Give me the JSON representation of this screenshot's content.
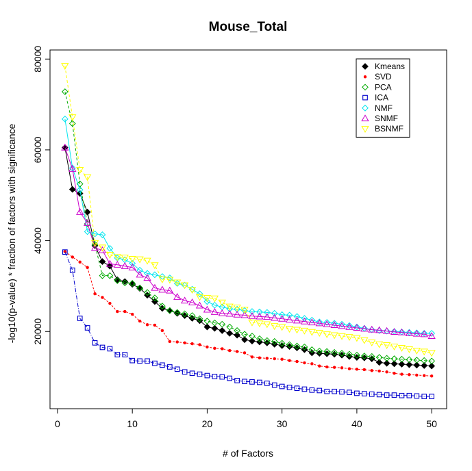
{
  "chart_data": {
    "type": "line",
    "title": "Mouse_Total",
    "xlabel": "# of Factors",
    "ylabel": "-log10(p-value) * fraction of factors with significance",
    "xlim": [
      -1,
      52
    ],
    "ylim": [
      3000,
      82000
    ],
    "x_ticks": [
      0,
      10,
      20,
      30,
      40,
      50
    ],
    "y_ticks": [
      20000,
      40000,
      60000,
      80000
    ],
    "legend_position": "top-right",
    "grid": false,
    "x": [
      1,
      2,
      3,
      4,
      5,
      6,
      7,
      8,
      9,
      10,
      11,
      12,
      13,
      14,
      15,
      16,
      17,
      18,
      19,
      20,
      21,
      22,
      23,
      24,
      25,
      26,
      27,
      28,
      29,
      30,
      31,
      32,
      33,
      34,
      35,
      36,
      37,
      38,
      39,
      40,
      41,
      42,
      43,
      44,
      45,
      46,
      47,
      48,
      49,
      50
    ],
    "series": [
      {
        "name": "Kmeans",
        "color": "#000000",
        "marker": "filled-diamond",
        "dash": "",
        "values": [
          60500,
          51300,
          50400,
          46300,
          38900,
          35400,
          34400,
          31400,
          31000,
          30400,
          29500,
          28000,
          26600,
          25100,
          24600,
          24000,
          23500,
          22900,
          22400,
          21000,
          20700,
          20200,
          19600,
          19200,
          18200,
          17900,
          17700,
          17500,
          17200,
          16900,
          16700,
          16400,
          16000,
          15300,
          15200,
          15100,
          15000,
          14800,
          14500,
          14300,
          14200,
          14000,
          13200,
          13000,
          12900,
          12800,
          12700,
          12600,
          12500,
          12400
        ]
      },
      {
        "name": "SVD",
        "color": "#ff0000",
        "marker": "filled-dot",
        "dash": "3,2",
        "values": [
          37600,
          36400,
          35300,
          34100,
          28300,
          27500,
          26200,
          24400,
          24400,
          23800,
          22300,
          21500,
          21400,
          20200,
          17800,
          17700,
          17500,
          17300,
          17100,
          16600,
          16300,
          16200,
          15800,
          15600,
          15300,
          14400,
          14200,
          14100,
          14000,
          13900,
          13600,
          13400,
          13100,
          12900,
          12400,
          12200,
          12100,
          12000,
          11800,
          11700,
          11600,
          11400,
          11300,
          11100,
          10800,
          10600,
          10500,
          10400,
          10300,
          10200
        ]
      },
      {
        "name": "PCA",
        "color": "#00aa00",
        "marker": "open-diamond",
        "dash": "4,3",
        "values": [
          72800,
          65800,
          52500,
          43700,
          39200,
          32300,
          32300,
          31200,
          30700,
          30600,
          29600,
          28600,
          27400,
          25600,
          24600,
          24200,
          23900,
          23500,
          22800,
          22300,
          21900,
          21600,
          21000,
          20200,
          19400,
          19000,
          18400,
          18000,
          17800,
          17400,
          17100,
          16800,
          16600,
          16000,
          15700,
          15600,
          15400,
          15200,
          15000,
          14800,
          14600,
          14500,
          14300,
          14100,
          14000,
          13900,
          13800,
          13700,
          13600,
          13500
        ]
      },
      {
        "name": "ICA",
        "color": "#0000cc",
        "marker": "open-square",
        "dash": "6,2,1,2",
        "values": [
          37500,
          33500,
          22900,
          20800,
          17500,
          16500,
          16200,
          14900,
          14900,
          13600,
          13500,
          13500,
          13000,
          12600,
          12200,
          11700,
          11100,
          10800,
          10600,
          10300,
          10100,
          10000,
          9700,
          9200,
          9000,
          8900,
          8800,
          8600,
          8200,
          7900,
          7700,
          7500,
          7300,
          7100,
          7000,
          6800,
          6800,
          6700,
          6600,
          6400,
          6300,
          6200,
          6100,
          6000,
          6000,
          5900,
          5900,
          5800,
          5700,
          5700
        ]
      },
      {
        "name": "NMF",
        "color": "#00e5ee",
        "marker": "open-diamond",
        "dash": "",
        "values": [
          66800,
          56000,
          51200,
          42000,
          41500,
          41300,
          38300,
          36200,
          35800,
          35000,
          33500,
          32800,
          32500,
          32100,
          31800,
          30600,
          30200,
          29300,
          28300,
          26600,
          25800,
          25400,
          25000,
          24900,
          24600,
          24400,
          24300,
          24200,
          24000,
          23700,
          23600,
          23300,
          22900,
          22500,
          22100,
          22000,
          21800,
          21600,
          21300,
          21000,
          20700,
          20400,
          20200,
          20100,
          20000,
          19900,
          19800,
          19700,
          19600,
          19600
        ]
      },
      {
        "name": "SNMF",
        "color": "#cc00cc",
        "marker": "open-triangle-up",
        "dash": "",
        "values": [
          60500,
          55800,
          46300,
          43900,
          38400,
          37900,
          34900,
          34700,
          34400,
          34100,
          32500,
          31800,
          29600,
          29200,
          29000,
          27600,
          26800,
          26400,
          25700,
          24800,
          24300,
          24000,
          23900,
          23700,
          23600,
          23400,
          23300,
          23200,
          23000,
          22800,
          22600,
          22400,
          22200,
          22000,
          21800,
          21600,
          21400,
          21200,
          21000,
          20800,
          20600,
          20400,
          20300,
          20100,
          19900,
          19800,
          19600,
          19500,
          19400,
          19000
        ]
      },
      {
        "name": "BSNMF",
        "color": "#ffff00",
        "marker": "open-triangle-down",
        "dash": "4,3",
        "values": [
          78500,
          67200,
          55600,
          54000,
          39500,
          38500,
          36900,
          36400,
          36300,
          36000,
          35900,
          35600,
          34600,
          31500,
          31400,
          30800,
          30200,
          29200,
          27600,
          27400,
          27300,
          26400,
          25500,
          25300,
          24800,
          22000,
          21800,
          21600,
          21200,
          21000,
          20600,
          20400,
          20200,
          19900,
          19700,
          19400,
          19200,
          19000,
          18800,
          18600,
          18100,
          17600,
          17200,
          17000,
          16700,
          16400,
          16100,
          15800,
          15600,
          15300
        ]
      }
    ]
  }
}
